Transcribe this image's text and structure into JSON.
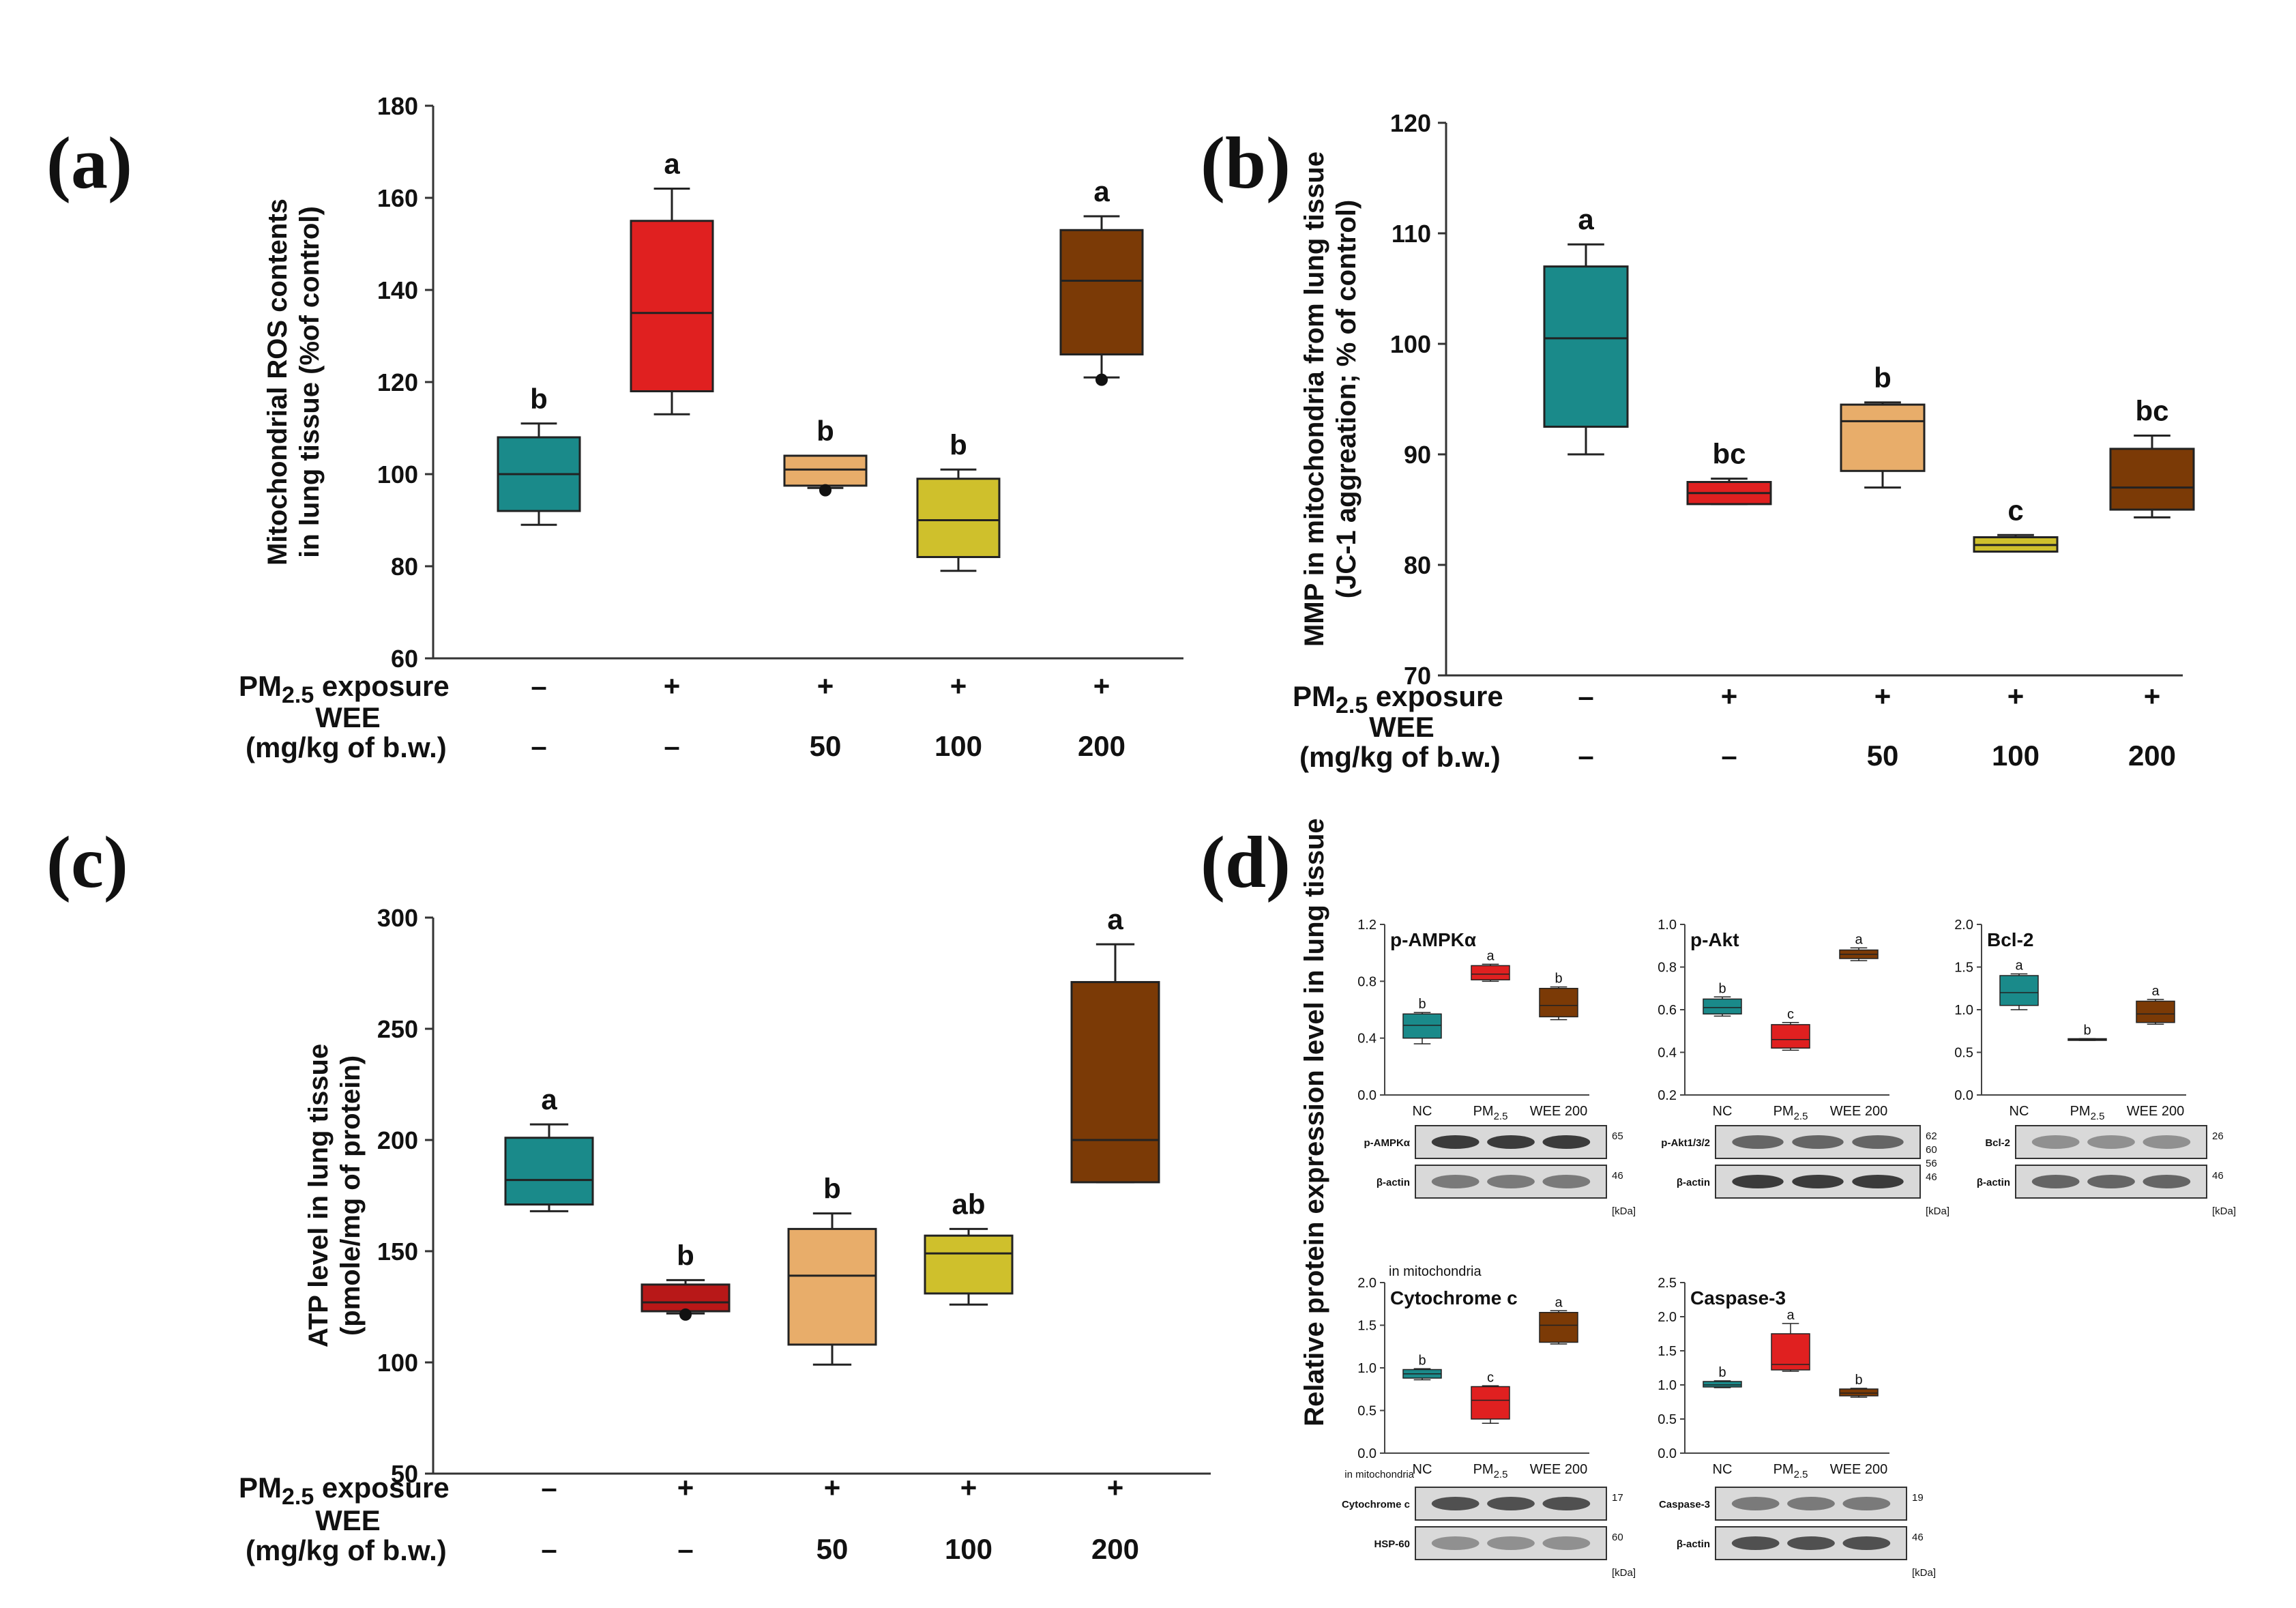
{
  "panels": {
    "a": "(a)",
    "b": "(b)",
    "c": "(c)",
    "d": "(d)"
  },
  "conditions": {
    "pm_label_main": "PM",
    "pm_label_sub": "2.5",
    "pm_label_rest": " exposure",
    "wee_label_line1": "WEE",
    "wee_label_line2": "(mg/kg of b.w.)",
    "pm_values": [
      "–",
      "+",
      "+",
      "+",
      "+"
    ],
    "wee_values": [
      "–",
      "–",
      "50",
      "100",
      "200"
    ]
  },
  "colors": {
    "teal": "#1a8a8a",
    "red": "#e02020",
    "lightorange": "#e8ad6a",
    "yellow": "#cfc02c",
    "brown": "#7b3a06",
    "darkred": "#b81818"
  },
  "chart_data": [
    {
      "id": "a",
      "type": "box",
      "ylabel_line1": "Mitochondrial ROS contents",
      "ylabel_line2": "in lung tissue (%of control)",
      "ylim": [
        60,
        180
      ],
      "yticks": [
        60,
        80,
        100,
        120,
        140,
        160,
        180
      ],
      "groups": [
        {
          "min": 89,
          "q1": 92,
          "median": 100,
          "q3": 108,
          "max": 111,
          "sig": "b",
          "color": "teal"
        },
        {
          "min": 113,
          "q1": 118,
          "median": 135,
          "q3": 155,
          "max": 162,
          "sig": "a",
          "color": "red"
        },
        {
          "min": 97,
          "q1": 97.5,
          "median": 101,
          "q3": 104,
          "max": 104,
          "sig": "b",
          "color": "lightorange",
          "outliers": [
            96.5
          ]
        },
        {
          "min": 79,
          "q1": 82,
          "median": 90,
          "q3": 99,
          "max": 101,
          "sig": "b",
          "color": "yellow"
        },
        {
          "min": 121,
          "q1": 126,
          "median": 142,
          "q3": 153,
          "max": 156,
          "sig": "a",
          "color": "brown",
          "outliers": [
            120.5
          ]
        }
      ]
    },
    {
      "id": "b",
      "type": "box",
      "ylabel_line1": "MMP in mitochondria from lung tissue",
      "ylabel_line2": "(JC-1 aggreation; % of control)",
      "ylim": [
        70,
        120
      ],
      "yticks": [
        70,
        80,
        90,
        100,
        110,
        120
      ],
      "groups": [
        {
          "min": 90,
          "q1": 92.5,
          "median": 100.5,
          "q3": 107,
          "max": 109,
          "sig": "a",
          "color": "teal"
        },
        {
          "min": 85.5,
          "q1": 85.5,
          "median": 86.5,
          "q3": 87.5,
          "max": 87.8,
          "sig": "bc",
          "color": "red"
        },
        {
          "min": 87,
          "q1": 88.5,
          "median": 93,
          "q3": 94.5,
          "max": 94.7,
          "sig": "b",
          "color": "lightorange"
        },
        {
          "min": 81.2,
          "q1": 81.2,
          "median": 81.8,
          "q3": 82.5,
          "max": 82.7,
          "sig": "c",
          "color": "yellow"
        },
        {
          "min": 84.3,
          "q1": 85,
          "median": 87,
          "q3": 90.5,
          "max": 91.7,
          "sig": "bc",
          "color": "brown"
        }
      ]
    },
    {
      "id": "c",
      "type": "box",
      "ylabel_line1": "ATP level in lung tissue",
      "ylabel_line2": "(pmole/mg of protein)",
      "ylim": [
        50,
        300
      ],
      "yticks": [
        50,
        100,
        150,
        200,
        250,
        300
      ],
      "groups": [
        {
          "min": 168,
          "q1": 171,
          "median": 182,
          "q3": 201,
          "max": 207,
          "sig": "a",
          "color": "teal"
        },
        {
          "min": 122,
          "q1": 123,
          "median": 127,
          "q3": 135,
          "max": 137,
          "sig": "b",
          "color": "darkred",
          "outliers": [
            121.5
          ]
        },
        {
          "min": 99,
          "q1": 108,
          "median": 139,
          "q3": 160,
          "max": 167,
          "sig": "b",
          "color": "lightorange"
        },
        {
          "min": 126,
          "q1": 131,
          "median": 149,
          "q3": 157,
          "max": 160,
          "sig": "ab",
          "color": "yellow"
        },
        {
          "min": 181,
          "q1": 181,
          "median": 200,
          "q3": 271,
          "max": 288,
          "sig": "a",
          "color": "brown"
        }
      ]
    },
    {
      "id": "d",
      "type": "box",
      "ylabel": "Relative protein expression level in lung tissue",
      "categories": [
        "NC",
        "PM2.5",
        "WEE 200"
      ],
      "subplots": [
        {
          "title": "p-AMPKα",
          "ylim": [
            0,
            1.2
          ],
          "yticks": [
            "0.0",
            "0.4",
            "0.8",
            "1.2"
          ],
          "groups": [
            {
              "min": 0.36,
              "q1": 0.4,
              "median": 0.49,
              "q3": 0.57,
              "max": 0.58,
              "sig": "b",
              "color": "teal"
            },
            {
              "min": 0.8,
              "q1": 0.81,
              "median": 0.85,
              "q3": 0.91,
              "max": 0.92,
              "sig": "a",
              "color": "red"
            },
            {
              "min": 0.53,
              "q1": 0.55,
              "median": 0.63,
              "q3": 0.75,
              "max": 0.76,
              "sig": "b",
              "color": "brown"
            }
          ]
        },
        {
          "title": "p-Akt",
          "ylim": [
            0.2,
            1.0
          ],
          "yticks": [
            "0.2",
            "0.4",
            "0.6",
            "0.8",
            "1.0"
          ],
          "groups": [
            {
              "min": 0.57,
              "q1": 0.58,
              "median": 0.61,
              "q3": 0.65,
              "max": 0.66,
              "sig": "b",
              "color": "teal"
            },
            {
              "min": 0.41,
              "q1": 0.42,
              "median": 0.46,
              "q3": 0.53,
              "max": 0.54,
              "sig": "c",
              "color": "red"
            },
            {
              "min": 0.83,
              "q1": 0.84,
              "median": 0.86,
              "q3": 0.88,
              "max": 0.89,
              "sig": "a",
              "color": "brown"
            }
          ]
        },
        {
          "title": "Bcl-2",
          "ylim": [
            0,
            2.0
          ],
          "yticks": [
            "0.0",
            "0.5",
            "1.0",
            "1.5",
            "2.0"
          ],
          "groups": [
            {
              "min": 1.0,
              "q1": 1.05,
              "median": 1.2,
              "q3": 1.4,
              "max": 1.42,
              "sig": "a",
              "color": "teal"
            },
            {
              "min": 0.64,
              "q1": 0.64,
              "median": 0.65,
              "q3": 0.66,
              "max": 0.66,
              "sig": "b",
              "color": "red"
            },
            {
              "min": 0.83,
              "q1": 0.85,
              "median": 0.95,
              "q3": 1.1,
              "max": 1.12,
              "sig": "a",
              "color": "brown"
            }
          ]
        },
        {
          "title": "Cytochrome c",
          "subtitle": "in mitochondria",
          "ylim": [
            0,
            2.0
          ],
          "yticks": [
            "0.0",
            "0.5",
            "1.0",
            "1.5",
            "2.0"
          ],
          "groups": [
            {
              "min": 0.86,
              "q1": 0.88,
              "median": 0.93,
              "q3": 0.98,
              "max": 0.99,
              "sig": "b",
              "color": "teal"
            },
            {
              "min": 0.35,
              "q1": 0.4,
              "median": 0.62,
              "q3": 0.78,
              "max": 0.79,
              "sig": "c",
              "color": "red"
            },
            {
              "min": 1.28,
              "q1": 1.3,
              "median": 1.5,
              "q3": 1.65,
              "max": 1.67,
              "sig": "a",
              "color": "brown"
            }
          ]
        },
        {
          "title": "Caspase-3",
          "ylim": [
            0,
            2.5
          ],
          "yticks": [
            "0.0",
            "0.5",
            "1.0",
            "1.5",
            "2.0",
            "2.5"
          ],
          "groups": [
            {
              "min": 0.96,
              "q1": 0.97,
              "median": 1.0,
              "q3": 1.05,
              "max": 1.06,
              "sig": "b",
              "color": "teal"
            },
            {
              "min": 1.2,
              "q1": 1.22,
              "median": 1.3,
              "q3": 1.75,
              "max": 1.9,
              "sig": "a",
              "color": "red"
            },
            {
              "min": 0.82,
              "q1": 0.84,
              "median": 0.88,
              "q3": 0.94,
              "max": 0.95,
              "sig": "b",
              "color": "brown"
            }
          ]
        }
      ],
      "blots": [
        {
          "rows": [
            "p-AMPKα",
            "β-actin"
          ],
          "kda": [
            "65",
            "46"
          ],
          "kda_unit": "[kDa]"
        },
        {
          "rows": [
            "p-Akt1/3/2",
            "β-actin"
          ],
          "kda": [
            "62",
            "60",
            "56",
            "46"
          ],
          "kda_unit": "[kDa]"
        },
        {
          "rows": [
            "Bcl-2",
            "β-actin"
          ],
          "kda": [
            "26",
            "46"
          ],
          "kda_unit": "[kDa]"
        },
        {
          "rows": [
            "Cytochrome c",
            "HSP-60"
          ],
          "kda": [
            "17",
            "60"
          ],
          "kda_unit": "[kDa]",
          "label_note": "in mitochondria"
        },
        {
          "rows": [
            "Caspase-3",
            "β-actin"
          ],
          "kda": [
            "19",
            "46"
          ],
          "kda_unit": "[kDa]"
        }
      ]
    }
  ]
}
